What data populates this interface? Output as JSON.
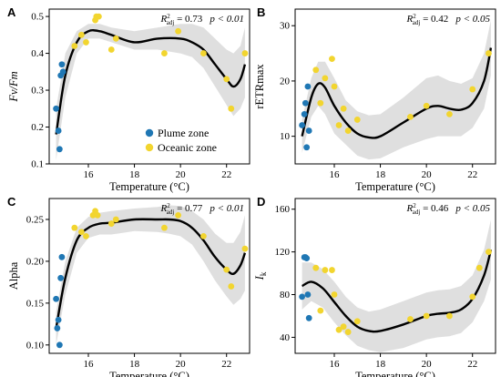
{
  "colors": {
    "plume": "#1f77b4",
    "oceanic": "#f2d52f",
    "fit": "#000000",
    "band": "#d9d9d9"
  },
  "legend": {
    "plume": "Plume zone",
    "oceanic": "Oceanic zone",
    "placement": "bottom-right of panel A"
  },
  "chart_data": [
    {
      "panel": "A",
      "type": "scatter",
      "xlabel": "Temperature (°C)",
      "ylabel": "Fv/Fm",
      "xlim": [
        14.3,
        23.0
      ],
      "ylim": [
        0.1,
        0.52
      ],
      "xticks": [
        "16",
        "18",
        "20",
        "22"
      ],
      "yticks": [
        "0.1",
        "0.2",
        "0.3",
        "0.4",
        "0.5"
      ],
      "stat": {
        "r2": "R",
        "sup": "2",
        "sub": "adj",
        "eq": " = 0.73",
        "p": "p < 0.01"
      },
      "plume": [
        [
          14.6,
          0.25
        ],
        [
          14.7,
          0.19
        ],
        [
          14.75,
          0.14
        ],
        [
          14.8,
          0.34
        ],
        [
          14.85,
          0.37
        ],
        [
          14.9,
          0.35
        ]
      ],
      "oceanic": [
        [
          15.4,
          0.42
        ],
        [
          15.7,
          0.45
        ],
        [
          15.9,
          0.43
        ],
        [
          16.3,
          0.49
        ],
        [
          16.35,
          0.5
        ],
        [
          16.45,
          0.5
        ],
        [
          17.0,
          0.41
        ],
        [
          17.2,
          0.44
        ],
        [
          19.3,
          0.4
        ],
        [
          19.9,
          0.46
        ],
        [
          21.0,
          0.4
        ],
        [
          22.0,
          0.33
        ],
        [
          22.2,
          0.25
        ],
        [
          22.8,
          0.4
        ]
      ],
      "fit": [
        [
          14.6,
          0.18
        ],
        [
          15.0,
          0.34
        ],
        [
          15.5,
          0.43
        ],
        [
          16.0,
          0.46
        ],
        [
          16.5,
          0.46
        ],
        [
          17.0,
          0.45
        ],
        [
          18.0,
          0.43
        ],
        [
          19.0,
          0.44
        ],
        [
          20.0,
          0.44
        ],
        [
          20.5,
          0.43
        ],
        [
          21.0,
          0.41
        ],
        [
          21.5,
          0.37
        ],
        [
          22.0,
          0.33
        ],
        [
          22.3,
          0.31
        ],
        [
          22.6,
          0.33
        ],
        [
          22.8,
          0.37
        ]
      ],
      "band_upper": [
        [
          14.6,
          0.25
        ],
        [
          15.0,
          0.4
        ],
        [
          15.5,
          0.46
        ],
        [
          16.0,
          0.48
        ],
        [
          16.5,
          0.48
        ],
        [
          17.0,
          0.47
        ],
        [
          18.0,
          0.46
        ],
        [
          19.0,
          0.47
        ],
        [
          20.0,
          0.48
        ],
        [
          20.5,
          0.48
        ],
        [
          21.0,
          0.47
        ],
        [
          21.5,
          0.44
        ],
        [
          22.0,
          0.41
        ],
        [
          22.3,
          0.4
        ],
        [
          22.6,
          0.42
        ],
        [
          22.8,
          0.47
        ]
      ],
      "band_lower": [
        [
          14.6,
          0.11
        ],
        [
          15.0,
          0.28
        ],
        [
          15.5,
          0.4
        ],
        [
          16.0,
          0.44
        ],
        [
          16.5,
          0.44
        ],
        [
          17.0,
          0.43
        ],
        [
          18.0,
          0.41
        ],
        [
          19.0,
          0.41
        ],
        [
          20.0,
          0.4
        ],
        [
          20.5,
          0.39
        ],
        [
          21.0,
          0.36
        ],
        [
          21.5,
          0.31
        ],
        [
          22.0,
          0.26
        ],
        [
          22.3,
          0.23
        ],
        [
          22.6,
          0.25
        ],
        [
          22.8,
          0.28
        ]
      ]
    },
    {
      "panel": "B",
      "type": "scatter",
      "xlabel": "Temperature (°C)",
      "ylabel": "rETRmax",
      "xlim": [
        14.3,
        23.0
      ],
      "ylim": [
        5,
        33
      ],
      "xticks": [
        "16",
        "18",
        "20",
        "22"
      ],
      "yticks": [
        "10",
        "20",
        "30"
      ],
      "stat": {
        "r2": "R",
        "sup": "2",
        "sub": "adj",
        "eq": " = 0.42",
        "p": "p < 0.05"
      },
      "plume": [
        [
          14.6,
          12.0
        ],
        [
          14.7,
          14.0
        ],
        [
          14.75,
          16.0
        ],
        [
          14.8,
          8.0
        ],
        [
          14.85,
          19.0
        ],
        [
          14.9,
          11.0
        ]
      ],
      "oceanic": [
        [
          15.2,
          22.0
        ],
        [
          15.4,
          16.0
        ],
        [
          15.6,
          20.5
        ],
        [
          15.9,
          24.0
        ],
        [
          16.0,
          19.0
        ],
        [
          16.2,
          12.0
        ],
        [
          16.4,
          15.0
        ],
        [
          16.6,
          11.0
        ],
        [
          17.0,
          13.0
        ],
        [
          19.3,
          13.5
        ],
        [
          20.0,
          15.5
        ],
        [
          21.0,
          14.0
        ],
        [
          22.0,
          18.5
        ],
        [
          22.7,
          25.0
        ]
      ],
      "fit": [
        [
          14.6,
          10.0
        ],
        [
          15.0,
          17.0
        ],
        [
          15.3,
          19.5
        ],
        [
          15.6,
          18.8
        ],
        [
          16.0,
          15.5
        ],
        [
          16.5,
          12.5
        ],
        [
          17.0,
          10.5
        ],
        [
          17.5,
          9.8
        ],
        [
          18.0,
          10.0
        ],
        [
          19.0,
          12.5
        ],
        [
          20.0,
          15.0
        ],
        [
          20.5,
          15.5
        ],
        [
          21.0,
          15.0
        ],
        [
          21.5,
          14.8
        ],
        [
          22.0,
          16.0
        ],
        [
          22.5,
          20.0
        ],
        [
          22.8,
          26.0
        ]
      ],
      "band_upper": [
        [
          14.6,
          13.0
        ],
        [
          15.0,
          20.5
        ],
        [
          15.3,
          23.5
        ],
        [
          15.6,
          23.5
        ],
        [
          16.0,
          20.5
        ],
        [
          16.5,
          16.5
        ],
        [
          17.0,
          14.5
        ],
        [
          17.5,
          13.8
        ],
        [
          18.0,
          14.0
        ],
        [
          19.0,
          17.0
        ],
        [
          20.0,
          20.5
        ],
        [
          20.5,
          21.0
        ],
        [
          21.0,
          20.0
        ],
        [
          21.5,
          19.5
        ],
        [
          22.0,
          20.5
        ],
        [
          22.5,
          25.0
        ],
        [
          22.8,
          31.0
        ]
      ],
      "band_lower": [
        [
          14.6,
          7.0
        ],
        [
          15.0,
          13.5
        ],
        [
          15.3,
          15.5
        ],
        [
          15.6,
          14.0
        ],
        [
          16.0,
          10.5
        ],
        [
          16.5,
          8.5
        ],
        [
          17.0,
          6.5
        ],
        [
          17.5,
          5.8
        ],
        [
          18.0,
          6.0
        ],
        [
          19.0,
          8.0
        ],
        [
          20.0,
          9.5
        ],
        [
          20.5,
          10.0
        ],
        [
          21.0,
          10.0
        ],
        [
          21.5,
          10.0
        ],
        [
          22.0,
          11.5
        ],
        [
          22.5,
          15.0
        ],
        [
          22.8,
          21.0
        ]
      ]
    },
    {
      "panel": "C",
      "type": "scatter",
      "xlabel": "Temperature (°C)",
      "ylabel": "Alpha",
      "xlim": [
        14.3,
        23.0
      ],
      "ylim": [
        0.09,
        0.275
      ],
      "xticks": [
        "16",
        "18",
        "20",
        "22"
      ],
      "yticks": [
        "0.10",
        "0.15",
        "0.20",
        "0.25"
      ],
      "stat": {
        "r2": "R",
        "sup": "2",
        "sub": "adj",
        "eq": " = 0.77",
        "p": "p < 0.01"
      },
      "plume": [
        [
          14.6,
          0.155
        ],
        [
          14.65,
          0.12
        ],
        [
          14.7,
          0.13
        ],
        [
          14.75,
          0.1
        ],
        [
          14.8,
          0.18
        ],
        [
          14.85,
          0.205
        ]
      ],
      "oceanic": [
        [
          15.4,
          0.24
        ],
        [
          15.7,
          0.235
        ],
        [
          15.9,
          0.23
        ],
        [
          16.2,
          0.255
        ],
        [
          16.3,
          0.26
        ],
        [
          16.4,
          0.255
        ],
        [
          17.0,
          0.245
        ],
        [
          17.2,
          0.25
        ],
        [
          19.3,
          0.24
        ],
        [
          19.9,
          0.255
        ],
        [
          21.0,
          0.23
        ],
        [
          22.0,
          0.19
        ],
        [
          22.2,
          0.17
        ],
        [
          22.8,
          0.215
        ]
      ],
      "fit": [
        [
          14.6,
          0.12
        ],
        [
          15.0,
          0.18
        ],
        [
          15.5,
          0.225
        ],
        [
          16.0,
          0.24
        ],
        [
          16.5,
          0.245
        ],
        [
          17.0,
          0.246
        ],
        [
          18.0,
          0.25
        ],
        [
          19.0,
          0.25
        ],
        [
          19.5,
          0.25
        ],
        [
          20.0,
          0.248
        ],
        [
          20.5,
          0.24
        ],
        [
          21.0,
          0.225
        ],
        [
          21.5,
          0.205
        ],
        [
          22.0,
          0.19
        ],
        [
          22.3,
          0.185
        ],
        [
          22.6,
          0.195
        ],
        [
          22.8,
          0.21
        ]
      ],
      "band_upper": [
        [
          14.6,
          0.14
        ],
        [
          15.0,
          0.2
        ],
        [
          15.5,
          0.24
        ],
        [
          16.0,
          0.253
        ],
        [
          16.5,
          0.258
        ],
        [
          17.0,
          0.26
        ],
        [
          18.0,
          0.263
        ],
        [
          19.0,
          0.265
        ],
        [
          19.5,
          0.267
        ],
        [
          20.0,
          0.266
        ],
        [
          20.5,
          0.26
        ],
        [
          21.0,
          0.25
        ],
        [
          21.5,
          0.233
        ],
        [
          22.0,
          0.222
        ],
        [
          22.3,
          0.222
        ],
        [
          22.6,
          0.235
        ],
        [
          22.8,
          0.255
        ]
      ],
      "band_lower": [
        [
          14.6,
          0.1
        ],
        [
          15.0,
          0.16
        ],
        [
          15.5,
          0.21
        ],
        [
          16.0,
          0.228
        ],
        [
          16.5,
          0.232
        ],
        [
          17.0,
          0.232
        ],
        [
          18.0,
          0.236
        ],
        [
          19.0,
          0.235
        ],
        [
          19.5,
          0.233
        ],
        [
          20.0,
          0.23
        ],
        [
          20.5,
          0.22
        ],
        [
          21.0,
          0.2
        ],
        [
          21.5,
          0.177
        ],
        [
          22.0,
          0.158
        ],
        [
          22.3,
          0.148
        ],
        [
          22.6,
          0.155
        ],
        [
          22.8,
          0.165
        ]
      ]
    },
    {
      "panel": "D",
      "type": "scatter",
      "xlabel": "Temperature (°C)",
      "ylabel": "I",
      "ylabel_sub": "k",
      "xlim": [
        14.3,
        23.0
      ],
      "ylim": [
        25,
        170
      ],
      "xticks": [
        "16",
        "18",
        "20",
        "22"
      ],
      "yticks": [
        "40",
        "80",
        "120",
        "160"
      ],
      "stat": {
        "r2": "R",
        "sup": "2",
        "sub": "adj",
        "eq": " = 0.46",
        "p": "p < 0.05"
      },
      "plume": [
        [
          14.6,
          78
        ],
        [
          14.7,
          115
        ],
        [
          14.75,
          115
        ],
        [
          14.8,
          114
        ],
        [
          14.85,
          80
        ],
        [
          14.9,
          58
        ]
      ],
      "oceanic": [
        [
          15.2,
          105
        ],
        [
          15.4,
          65
        ],
        [
          15.6,
          103
        ],
        [
          15.9,
          103
        ],
        [
          16.0,
          80
        ],
        [
          16.2,
          47
        ],
        [
          16.4,
          50
        ],
        [
          16.6,
          45
        ],
        [
          17.0,
          55
        ],
        [
          19.3,
          57
        ],
        [
          20.0,
          60
        ],
        [
          21.0,
          60
        ],
        [
          22.0,
          78
        ],
        [
          22.3,
          105
        ],
        [
          22.7,
          120
        ]
      ],
      "fit": [
        [
          14.6,
          88
        ],
        [
          15.0,
          92
        ],
        [
          15.5,
          86
        ],
        [
          16.0,
          73
        ],
        [
          16.5,
          60
        ],
        [
          17.0,
          50
        ],
        [
          17.5,
          46
        ],
        [
          18.0,
          46
        ],
        [
          19.0,
          52
        ],
        [
          20.0,
          60
        ],
        [
          20.5,
          62
        ],
        [
          21.0,
          63
        ],
        [
          21.5,
          66
        ],
        [
          22.0,
          76
        ],
        [
          22.5,
          98
        ],
        [
          22.8,
          122
        ]
      ],
      "band_upper": [
        [
          14.6,
          110
        ],
        [
          15.0,
          110
        ],
        [
          15.5,
          104
        ],
        [
          16.0,
          92
        ],
        [
          16.5,
          78
        ],
        [
          17.0,
          68
        ],
        [
          17.5,
          64
        ],
        [
          18.0,
          66
        ],
        [
          19.0,
          74
        ],
        [
          20.0,
          82
        ],
        [
          20.5,
          84
        ],
        [
          21.0,
          85
        ],
        [
          21.5,
          88
        ],
        [
          22.0,
          98
        ],
        [
          22.5,
          122
        ],
        [
          22.8,
          150
        ]
      ],
      "band_lower": [
        [
          14.6,
          66
        ],
        [
          15.0,
          74
        ],
        [
          15.5,
          68
        ],
        [
          16.0,
          54
        ],
        [
          16.5,
          42
        ],
        [
          17.0,
          32
        ],
        [
          17.5,
          28
        ],
        [
          18.0,
          26
        ],
        [
          19.0,
          30
        ],
        [
          20.0,
          38
        ],
        [
          20.5,
          40
        ],
        [
          21.0,
          41
        ],
        [
          21.5,
          44
        ],
        [
          22.0,
          54
        ],
        [
          22.5,
          74
        ],
        [
          22.8,
          94
        ]
      ]
    }
  ]
}
